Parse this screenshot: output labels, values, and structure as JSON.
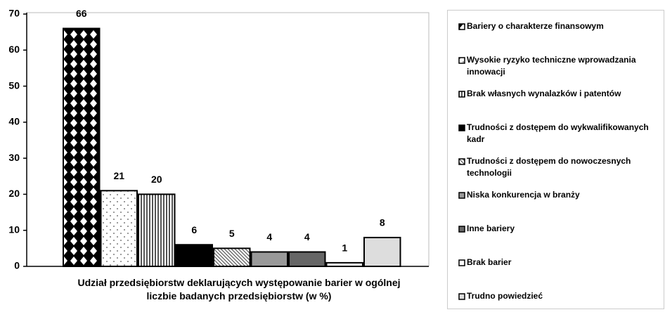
{
  "chart_data": {
    "type": "bar",
    "xlabel": "Udział przedsiębiorstw deklarujących występowanie barier w ogólnej liczbie badanych przedsiębiorstw (w %)",
    "categories": [
      "Bariery o charakterze finansowym",
      "Wysokie ryzyko techniczne wprowadzania innowacji",
      "Brak własnych wynalazków i patentów",
      "Trudności z dostępem do wykwalifikowanych kadr",
      "Trudności z dostępem do nowoczesnych technologii",
      "Niska konkurencja w branży",
      "Inne bariery",
      "Brak barier",
      "Trudno powiedzieć"
    ],
    "values": [
      66,
      21,
      20,
      6,
      5,
      4,
      4,
      1,
      8
    ],
    "fills": [
      "diamonds",
      "dots",
      "vstripes",
      "solid",
      "hatch",
      "solid",
      "solid",
      "solid",
      "solid"
    ],
    "colors": [
      "#000000",
      "#ffffff",
      "#ffffff",
      "#000000",
      "#ffffff",
      "#999999",
      "#666666",
      "#ffffff",
      "#dddddd"
    ],
    "ylim": [
      0,
      70
    ],
    "yticks": [
      0,
      10,
      20,
      30,
      40,
      50,
      60,
      70
    ],
    "grid": false,
    "legend": "right"
  }
}
